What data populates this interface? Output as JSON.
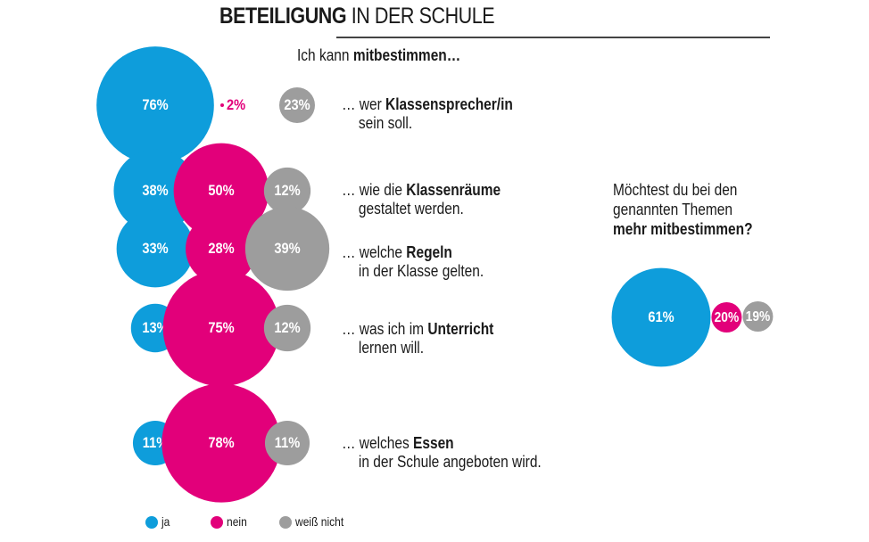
{
  "chart_data": {
    "type": "bubble",
    "title_bold": "BETEILIGUNG",
    "title_rest": " IN DER SCHULE",
    "intro_prefix": "Ich kann ",
    "intro_bold": "mitbestimmen…",
    "series_names": [
      "ja",
      "nein",
      "weiß nicht"
    ],
    "colors": {
      "ja": "#0e9ddb",
      "nein": "#e2007a",
      "weiss_nicht": "#9d9d9d"
    },
    "rows": [
      {
        "q_prefix": "… wer ",
        "q_bold": "Klassensprecher/in",
        "q_line2": "sein soll.",
        "values": [
          76,
          2,
          23
        ],
        "labels": [
          "76%",
          "2%",
          "23%"
        ]
      },
      {
        "q_prefix": "… wie die ",
        "q_bold": "Klassenräume",
        "q_line2": "gestaltet werden.",
        "values": [
          38,
          50,
          12
        ],
        "labels": [
          "38%",
          "50%",
          "12%"
        ]
      },
      {
        "q_prefix": "… welche ",
        "q_bold": "Regeln",
        "q_line2": "in der Klasse gelten.",
        "values": [
          33,
          28,
          39
        ],
        "labels": [
          "33%",
          "28%",
          "39%"
        ]
      },
      {
        "q_prefix": "… was ich im ",
        "q_bold": "Unterricht",
        "q_line2": "lernen will.",
        "values": [
          13,
          75,
          12
        ],
        "labels": [
          "13%",
          "75%",
          "12%"
        ]
      },
      {
        "q_prefix": "… welches ",
        "q_bold": "Essen",
        "q_line2": "in der Schule angeboten wird.",
        "values": [
          11,
          78,
          11
        ],
        "labels": [
          "11%",
          "78%",
          "11%"
        ]
      }
    ],
    "side_question": {
      "line1": "Möchtest du bei den",
      "line2": "genannten Themen",
      "line3_bold": "mehr mitbestimmen?",
      "values": [
        61,
        20,
        19
      ],
      "labels": [
        "61%",
        "20%",
        "19%"
      ]
    },
    "legend": [
      {
        "label": "ja"
      },
      {
        "label": "nein"
      },
      {
        "label": "weiß nicht"
      }
    ]
  }
}
